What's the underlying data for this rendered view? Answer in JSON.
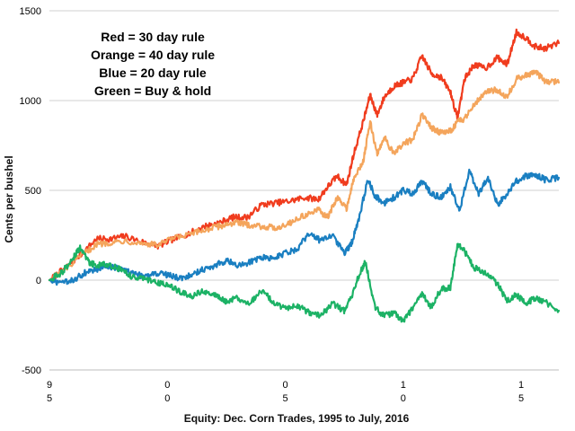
{
  "chart_data": {
    "type": "line",
    "title": "",
    "xlabel": "Equity: Dec. Corn Trades, 1995 to July, 2016",
    "ylabel": "Cents per bushel",
    "ylim": [
      -500,
      1500
    ],
    "xlim": [
      1995,
      2016.6
    ],
    "yticks": [
      {
        "value": -500,
        "label": "-500"
      },
      {
        "value": 0,
        "label": "0"
      },
      {
        "value": 500,
        "label": "500"
      },
      {
        "value": 1000,
        "label": "1000"
      },
      {
        "value": 1500,
        "label": "1500"
      }
    ],
    "xticks": [
      {
        "value": 1995,
        "line1": "9",
        "line2": "5"
      },
      {
        "value": 2000,
        "line1": "0",
        "line2": "0"
      },
      {
        "value": 2005,
        "line1": "0",
        "line2": "5"
      },
      {
        "value": 2010,
        "line1": "1",
        "line2": "0"
      },
      {
        "value": 2015,
        "line1": "1",
        "line2": "5"
      }
    ],
    "grid": "horizontal",
    "annotations": [
      "Red = 30 day rule",
      "Orange = 40 day rule",
      "Blue = 20 day rule",
      "Green = Buy & hold"
    ],
    "series": [
      {
        "color": "#f03c1e",
        "x": [
          1995.0,
          1995.6,
          1996.4,
          1997.0,
          1997.6,
          1998.2,
          1999.0,
          1999.6,
          2000.2,
          2001.0,
          2001.6,
          2002.2,
          2002.8,
          2003.4,
          2004.0,
          2004.6,
          2005.2,
          2005.8,
          2006.4,
          2006.8,
          2007.2,
          2007.6,
          2007.9,
          2008.3,
          2008.6,
          2008.9,
          2009.2,
          2009.6,
          2010.0,
          2010.4,
          2010.8,
          2011.2,
          2011.6,
          2012.0,
          2012.3,
          2012.6,
          2013.0,
          2013.5,
          2014.0,
          2014.4,
          2014.8,
          2015.2,
          2015.6,
          2016.0,
          2016.6
        ],
        "y": [
          0,
          60,
          150,
          230,
          230,
          245,
          210,
          190,
          225,
          265,
          300,
          320,
          350,
          350,
          420,
          430,
          440,
          460,
          450,
          520,
          580,
          530,
          700,
          880,
          1030,
          920,
          1020,
          1080,
          1100,
          1120,
          1250,
          1150,
          1130,
          1050,
          900,
          1120,
          1200,
          1180,
          1240,
          1200,
          1380,
          1350,
          1300,
          1290,
          1320
        ]
      },
      {
        "color": "#f4a55c",
        "x": [
          1995.0,
          1995.6,
          1996.4,
          1997.0,
          1997.6,
          1998.2,
          1999.0,
          1999.6,
          2000.2,
          2001.0,
          2001.6,
          2002.2,
          2002.8,
          2003.4,
          2004.0,
          2004.6,
          2005.2,
          2005.8,
          2006.4,
          2006.8,
          2007.2,
          2007.6,
          2007.9,
          2008.3,
          2008.6,
          2008.9,
          2009.2,
          2009.6,
          2010.0,
          2010.4,
          2010.8,
          2011.2,
          2011.6,
          2012.0,
          2012.3,
          2012.6,
          2013.0,
          2013.5,
          2014.0,
          2014.4,
          2014.8,
          2015.2,
          2015.6,
          2016.0,
          2016.6
        ],
        "y": [
          0,
          50,
          140,
          200,
          210,
          220,
          205,
          195,
          230,
          255,
          280,
          300,
          320,
          310,
          300,
          290,
          320,
          360,
          390,
          350,
          460,
          400,
          560,
          660,
          880,
          700,
          800,
          700,
          760,
          780,
          920,
          850,
          820,
          830,
          880,
          900,
          980,
          1050,
          1060,
          1020,
          1120,
          1140,
          1160,
          1110,
          1100
        ]
      },
      {
        "color": "#1a7fc1",
        "x": [
          1995.0,
          1995.5,
          1996.0,
          1996.5,
          1997.0,
          1997.5,
          1998.0,
          1998.5,
          1999.0,
          1999.5,
          2000.0,
          2000.5,
          2001.0,
          2001.5,
          2002.0,
          2002.5,
          2003.0,
          2003.5,
          2004.0,
          2004.5,
          2005.0,
          2005.5,
          2006.0,
          2006.5,
          2007.0,
          2007.5,
          2007.8,
          2008.1,
          2008.5,
          2008.8,
          2009.2,
          2009.6,
          2010.0,
          2010.4,
          2010.8,
          2011.2,
          2011.6,
          2012.0,
          2012.4,
          2012.8,
          2013.2,
          2013.6,
          2014.0,
          2014.4,
          2014.8,
          2015.2,
          2015.6,
          2016.0,
          2016.6
        ],
        "y": [
          0,
          -20,
          0,
          40,
          60,
          80,
          60,
          40,
          20,
          40,
          30,
          10,
          30,
          60,
          80,
          110,
          80,
          100,
          130,
          120,
          150,
          170,
          260,
          220,
          250,
          150,
          200,
          330,
          560,
          470,
          430,
          460,
          500,
          480,
          550,
          480,
          460,
          520,
          390,
          610,
          480,
          570,
          420,
          480,
          550,
          580,
          590,
          560,
          570
        ]
      },
      {
        "color": "#1cb265",
        "x": [
          1995.0,
          1995.5,
          1996.0,
          1996.3,
          1996.7,
          1997.0,
          1997.5,
          1998.0,
          1998.5,
          1999.0,
          1999.5,
          2000.0,
          2000.5,
          2001.0,
          2001.5,
          2002.0,
          2002.5,
          2003.0,
          2003.5,
          2004.0,
          2004.5,
          2005.0,
          2005.5,
          2006.0,
          2006.5,
          2007.0,
          2007.5,
          2007.8,
          2008.1,
          2008.4,
          2008.8,
          2009.2,
          2009.6,
          2010.0,
          2010.4,
          2010.8,
          2011.2,
          2011.6,
          2012.0,
          2012.3,
          2012.6,
          2013.0,
          2013.5,
          2014.0,
          2014.4,
          2014.8,
          2015.2,
          2015.6,
          2016.0,
          2016.6
        ],
        "y": [
          0,
          40,
          120,
          180,
          100,
          80,
          90,
          60,
          20,
          10,
          -10,
          -30,
          -60,
          -90,
          -60,
          -80,
          -120,
          -100,
          -130,
          -60,
          -120,
          -160,
          -140,
          -180,
          -200,
          -130,
          -170,
          -100,
          20,
          100,
          -150,
          -200,
          -180,
          -230,
          -160,
          -80,
          -150,
          -50,
          -40,
          200,
          160,
          70,
          40,
          -20,
          -120,
          -80,
          -130,
          -100,
          -120,
          -170
        ]
      }
    ]
  }
}
